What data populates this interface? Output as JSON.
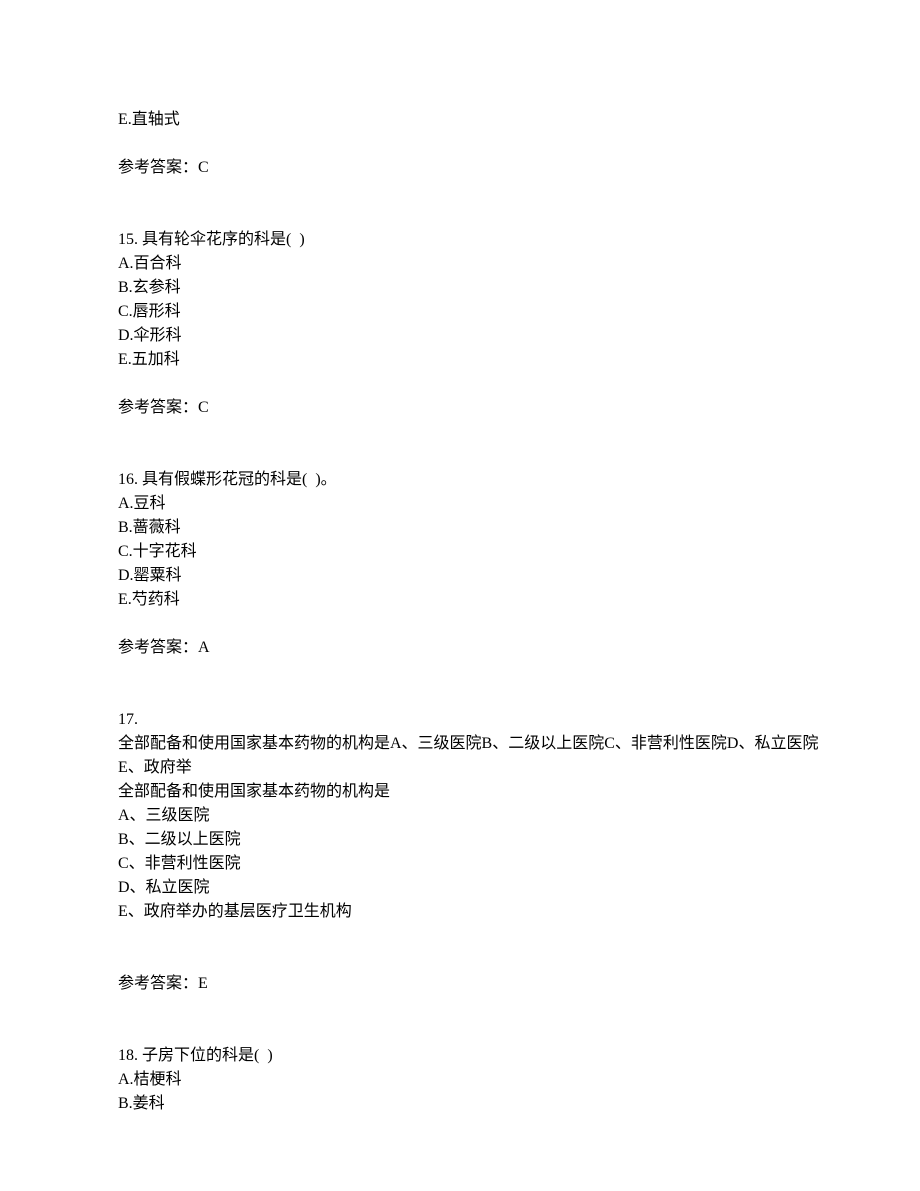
{
  "q14_trailing": {
    "optionE": "E.直轴式",
    "answer_label": "参考答案：C"
  },
  "q15": {
    "stem": "15. 具有轮伞花序的科是(  )",
    "optionA": "A.百合科",
    "optionB": "B.玄参科",
    "optionC": "C.唇形科",
    "optionD": "D.伞形科",
    "optionE": "E.五加科",
    "answer_label": "参考答案：C"
  },
  "q16": {
    "stem": "16. 具有假蝶形花冠的科是(  )。",
    "optionA": "A.豆科",
    "optionB": "B.蔷薇科",
    "optionC": "C.十字花科",
    "optionD": "D.罂粟科",
    "optionE": "E.芍药科",
    "answer_label": "参考答案：A"
  },
  "q17": {
    "number": "17.",
    "preamble1": "全部配备和使用国家基本药物的机构是A、三级医院B、二级以上医院C、非营利性医院D、私立医院E、政府举",
    "preamble2": "全部配备和使用国家基本药物的机构是",
    "optionA": "A、三级医院",
    "optionB": "B、二级以上医院",
    "optionC": "C、非营利性医院",
    "optionD": "D、私立医院",
    "optionE": "E、政府举办的基层医疗卫生机构",
    "answer_label": "参考答案：E"
  },
  "q18": {
    "stem": "18. 子房下位的科是(  )",
    "optionA": "A.桔梗科",
    "optionB": "B.姜科"
  }
}
